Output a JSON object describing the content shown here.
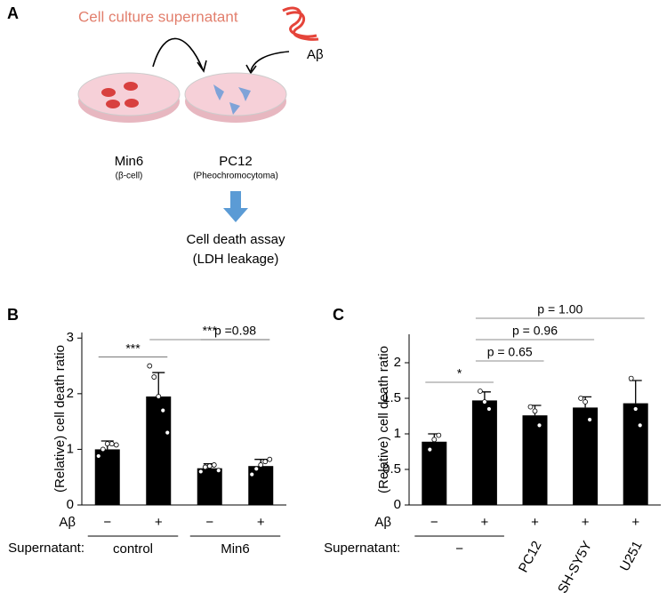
{
  "panel_a": {
    "label": "A",
    "supernatant": "Cell culture supernatant",
    "peptide": "Aβ",
    "source": {
      "name": "Min6",
      "detail": "(β-cell)"
    },
    "target": {
      "name": "PC12",
      "detail": "(Pheochromocytoma)"
    },
    "assay": {
      "name": "Cell death assay",
      "detail": "(LDH leakage)"
    }
  },
  "chart_data": [
    {
      "type": "bar",
      "panel": "B",
      "ylabel": "(Relative) cell death ratio",
      "color": "#000000",
      "row_label": "Aβ",
      "categories": [
        "−",
        "+",
        "−",
        "+"
      ],
      "values": [
        1.0,
        1.95,
        0.66,
        0.7
      ],
      "errors": [
        0.15,
        0.43,
        0.08,
        0.12
      ],
      "points": [
        [
          0.88,
          1.0,
          1.1,
          1.1,
          1.08
        ],
        [
          2.5,
          2.3,
          1.95,
          1.7,
          1.3
        ],
        [
          0.6,
          0.68,
          0.7,
          0.72,
          0.62
        ],
        [
          0.55,
          0.65,
          0.72,
          0.78,
          0.82
        ]
      ],
      "group_label": "Supernatant:",
      "groups": [
        {
          "label": "control",
          "members": [
            0,
            1
          ]
        },
        {
          "label": "Min6",
          "members": [
            2,
            3
          ]
        }
      ],
      "annotations": [
        {
          "text": "***",
          "from": 0,
          "to": 1
        },
        {
          "text": "***",
          "from": 1,
          "to": 3
        },
        {
          "text": "p =0.98",
          "from": 2,
          "to": 3
        }
      ],
      "ylim": [
        0,
        3.1
      ],
      "yticks": [
        0,
        1,
        2,
        3
      ]
    },
    {
      "type": "bar",
      "panel": "C",
      "ylabel": "(Relative) cell death ratio",
      "color": "#000000",
      "row_label": "Aβ",
      "categories": [
        "−",
        "+",
        "+",
        "+",
        "+"
      ],
      "values": [
        0.89,
        1.47,
        1.26,
        1.37,
        1.43
      ],
      "errors": [
        0.11,
        0.12,
        0.14,
        0.15,
        0.32
      ],
      "points": [
        [
          0.78,
          0.92,
          0.98
        ],
        [
          1.6,
          1.45,
          1.35
        ],
        [
          1.38,
          1.32,
          1.12
        ],
        [
          1.5,
          1.45,
          1.2
        ],
        [
          1.78,
          1.35,
          1.12
        ]
      ],
      "group_label": "Supernatant:",
      "groups": [
        {
          "label": "−",
          "members": [
            0,
            1
          ]
        },
        {
          "label": "PC12",
          "members": [
            2
          ]
        },
        {
          "label": "SH-SY5Y",
          "members": [
            3
          ]
        },
        {
          "label": "U251",
          "members": [
            4
          ]
        }
      ],
      "annotations": [
        {
          "text": "*",
          "from": 0,
          "to": 1
        },
        {
          "text": "p = 0.65",
          "from": 1,
          "to": 2
        },
        {
          "text": "p = 0.96",
          "from": 1,
          "to": 3
        },
        {
          "text": "p = 1.00",
          "from": 1,
          "to": 4
        }
      ],
      "ylim": [
        0,
        2.4
      ],
      "yticks": [
        0,
        0.5,
        1,
        1.5,
        2
      ]
    }
  ]
}
